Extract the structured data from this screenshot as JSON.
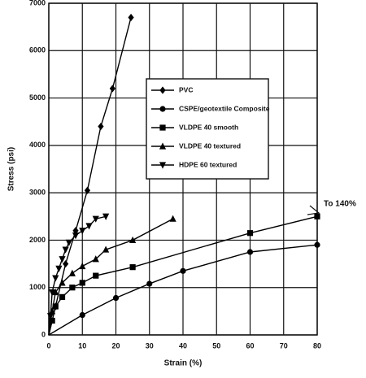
{
  "chart_data": {
    "type": "line",
    "x_label": "Strain (%)",
    "y_label": "Stress (psi)",
    "annotation": "To 140%",
    "xlim": [
      0,
      80
    ],
    "xticks": [
      0,
      10,
      20,
      30,
      40,
      50,
      60,
      70,
      80
    ],
    "ylim": [
      0,
      7000
    ],
    "yticks": [
      0,
      1000,
      2000,
      3000,
      4000,
      5000,
      6000,
      7000
    ],
    "grid": true,
    "legend": "upper right",
    "series": [
      {
        "name": "PVC",
        "color": "#000000",
        "marker": "diamond",
        "x": [
          0,
          2,
          5,
          8,
          11.5,
          15.5,
          19,
          24.5
        ],
        "values": [
          0,
          600,
          1500,
          2200,
          3050,
          4400,
          5200,
          6700
        ]
      },
      {
        "name": "CSPE/geotextile Composite",
        "color": "#000000",
        "marker": "circle",
        "x": [
          0,
          10,
          20,
          30,
          40,
          60,
          80
        ],
        "values": [
          0,
          420,
          780,
          1080,
          1350,
          1750,
          1900
        ]
      },
      {
        "name": "VLDPE 40 smooth",
        "color": "#000000",
        "marker": "square",
        "x": [
          0,
          1,
          2,
          4,
          7,
          10,
          14,
          25,
          60,
          80
        ],
        "values": [
          0,
          300,
          600,
          800,
          1000,
          1100,
          1250,
          1430,
          2150,
          2500
        ]
      },
      {
        "name": "VLDPE 40 textured",
        "color": "#000000",
        "marker": "triangle",
        "x": [
          0,
          1,
          2,
          4,
          7,
          10,
          14,
          17,
          25,
          37
        ],
        "values": [
          0,
          500,
          900,
          1100,
          1300,
          1450,
          1600,
          1800,
          2000,
          2450
        ]
      },
      {
        "name": "HDPE 60 textured",
        "color": "#000000",
        "marker": "triangle-down",
        "x": [
          0,
          0.5,
          1,
          2,
          3,
          4,
          5,
          6,
          8,
          10,
          12,
          14,
          17
        ],
        "values": [
          0,
          400,
          900,
          1200,
          1400,
          1600,
          1800,
          1950,
          2100,
          2200,
          2300,
          2450,
          2500
        ]
      }
    ]
  }
}
